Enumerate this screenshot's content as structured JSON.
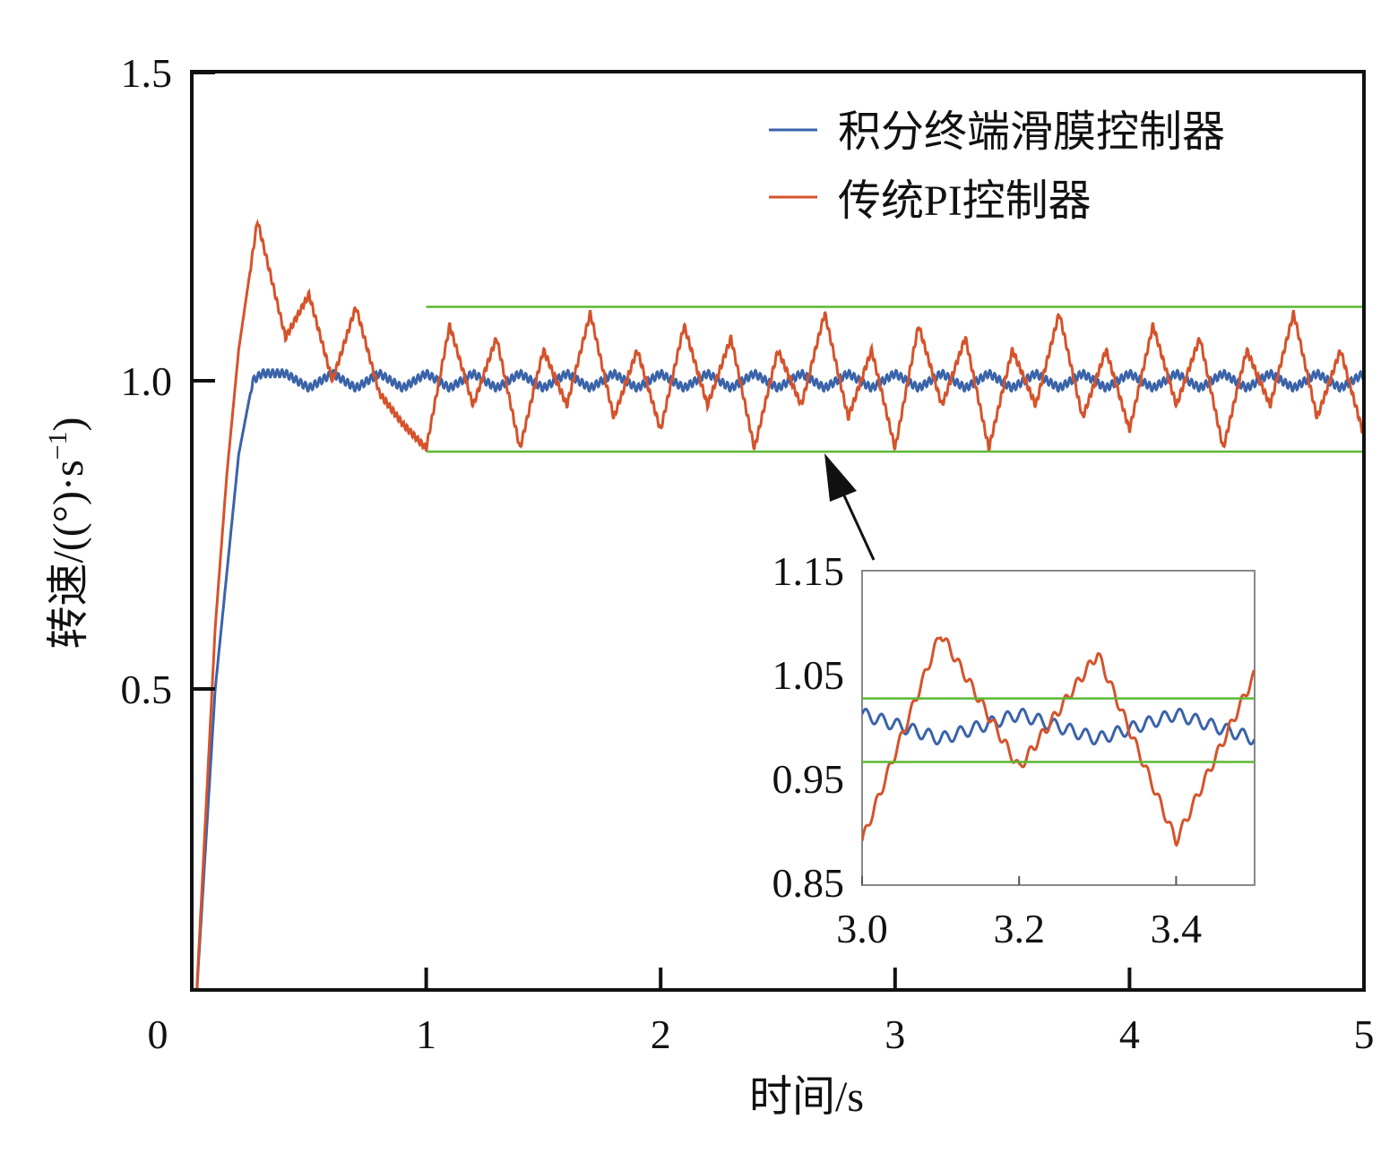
{
  "chart_data": {
    "type": "line",
    "xlabel": "时间/s",
    "ylabel": "转速/((°)·s",
    "ylabel_sup": "−1",
    "ylabel_close": ")",
    "xlim": [
      0,
      5
    ],
    "ylim": [
      0,
      1.5
    ],
    "xticks": [
      "0",
      "1",
      "2",
      "3",
      "4",
      "5"
    ],
    "yticks": [
      "0.5",
      "1.0",
      "1.5"
    ],
    "legend_position": "top-right",
    "grid": false,
    "colors": {
      "smc": "#3a63a9",
      "pi": "#d5532b",
      "bound": "#5cb734",
      "arrow": "#111111"
    },
    "series": [
      {
        "name": "积分终端滑膜控制器",
        "key": "smc",
        "ripple": {
          "amplitude": 0.006,
          "period": 0.02
        },
        "points": [
          [
            0,
            0
          ],
          [
            0.02,
            0
          ],
          [
            0.1,
            0.5
          ],
          [
            0.2,
            0.88
          ],
          [
            0.26,
            1.0
          ],
          [
            0.3,
            1.012
          ],
          [
            0.4,
            1.012
          ],
          [
            0.5,
            0.988
          ],
          [
            0.6,
            1.012
          ],
          [
            0.7,
            0.988
          ],
          [
            0.8,
            1.012
          ],
          [
            0.9,
            0.988
          ],
          [
            1.0,
            1.012
          ],
          [
            1.1,
            0.988
          ],
          [
            1.2,
            1.012
          ],
          [
            1.3,
            0.988
          ],
          [
            1.4,
            1.012
          ],
          [
            1.5,
            0.988
          ],
          [
            1.6,
            1.012
          ],
          [
            1.7,
            0.988
          ],
          [
            1.8,
            1.012
          ],
          [
            1.9,
            0.988
          ],
          [
            2.0,
            1.012
          ],
          [
            2.1,
            0.988
          ],
          [
            2.2,
            1.012
          ],
          [
            2.3,
            0.988
          ],
          [
            2.4,
            1.012
          ],
          [
            2.5,
            0.988
          ],
          [
            2.6,
            1.012
          ],
          [
            2.7,
            0.988
          ],
          [
            2.8,
            1.012
          ],
          [
            2.9,
            0.988
          ],
          [
            3.0,
            1.012
          ],
          [
            3.1,
            0.988
          ],
          [
            3.2,
            1.012
          ],
          [
            3.3,
            0.988
          ],
          [
            3.4,
            1.012
          ],
          [
            3.5,
            0.988
          ],
          [
            3.6,
            1.012
          ],
          [
            3.7,
            0.988
          ],
          [
            3.8,
            1.012
          ],
          [
            3.9,
            0.988
          ],
          [
            4.0,
            1.012
          ],
          [
            4.1,
            0.988
          ],
          [
            4.2,
            1.012
          ],
          [
            4.3,
            0.988
          ],
          [
            4.4,
            1.012
          ],
          [
            4.5,
            0.988
          ],
          [
            4.6,
            1.012
          ],
          [
            4.7,
            0.988
          ],
          [
            4.8,
            1.012
          ],
          [
            4.9,
            0.988
          ],
          [
            5.0,
            1.012
          ]
        ]
      },
      {
        "name": "传统PI控制器",
        "key": "pi",
        "ripple": {
          "amplitude": 0.005,
          "period": 0.015
        },
        "points": [
          [
            0,
            0
          ],
          [
            0.02,
            0
          ],
          [
            0.06,
            0.3
          ],
          [
            0.1,
            0.6
          ],
          [
            0.15,
            0.85
          ],
          [
            0.2,
            1.05
          ],
          [
            0.28,
            1.26
          ],
          [
            0.4,
            1.07
          ],
          [
            0.5,
            1.14
          ],
          [
            0.6,
            1.0
          ],
          [
            0.7,
            1.12
          ],
          [
            0.8,
            0.98
          ],
          [
            0.9,
            0.93
          ],
          [
            1.0,
            0.89
          ],
          [
            1.1,
            1.09
          ],
          [
            1.2,
            0.96
          ],
          [
            1.3,
            1.07
          ],
          [
            1.4,
            0.89
          ],
          [
            1.5,
            1.05
          ],
          [
            1.6,
            0.96
          ],
          [
            1.7,
            1.11
          ],
          [
            1.8,
            0.94
          ],
          [
            1.9,
            1.05
          ],
          [
            2.0,
            0.92
          ],
          [
            2.1,
            1.09
          ],
          [
            2.2,
            0.96
          ],
          [
            2.3,
            1.07
          ],
          [
            2.4,
            0.89
          ],
          [
            2.5,
            1.05
          ],
          [
            2.6,
            0.96
          ],
          [
            2.7,
            1.11
          ],
          [
            2.8,
            0.94
          ],
          [
            2.9,
            1.05
          ],
          [
            3.0,
            0.89
          ],
          [
            3.1,
            1.09
          ],
          [
            3.2,
            0.96
          ],
          [
            3.3,
            1.07
          ],
          [
            3.4,
            0.89
          ],
          [
            3.5,
            1.05
          ],
          [
            3.6,
            0.96
          ],
          [
            3.7,
            1.11
          ],
          [
            3.8,
            0.94
          ],
          [
            3.9,
            1.05
          ],
          [
            4.0,
            0.92
          ],
          [
            4.1,
            1.09
          ],
          [
            4.2,
            0.96
          ],
          [
            4.3,
            1.07
          ],
          [
            4.4,
            0.89
          ],
          [
            4.5,
            1.05
          ],
          [
            4.6,
            0.96
          ],
          [
            4.7,
            1.11
          ],
          [
            4.8,
            0.94
          ],
          [
            4.9,
            1.05
          ],
          [
            5.0,
            0.91
          ]
        ]
      }
    ],
    "bounds": {
      "x_range": [
        1.0,
        5.0
      ],
      "values": [
        0.885,
        1.12
      ]
    },
    "inset": {
      "xlim": [
        3.0,
        3.5
      ],
      "ylim": [
        0.85,
        1.15
      ],
      "xticks": [
        "3.0",
        "3.2",
        "3.4"
      ],
      "yticks": [
        "0.85",
        "0.95",
        "1.05",
        "1.15"
      ],
      "bounds": [
        0.966,
        1.027
      ]
    }
  }
}
